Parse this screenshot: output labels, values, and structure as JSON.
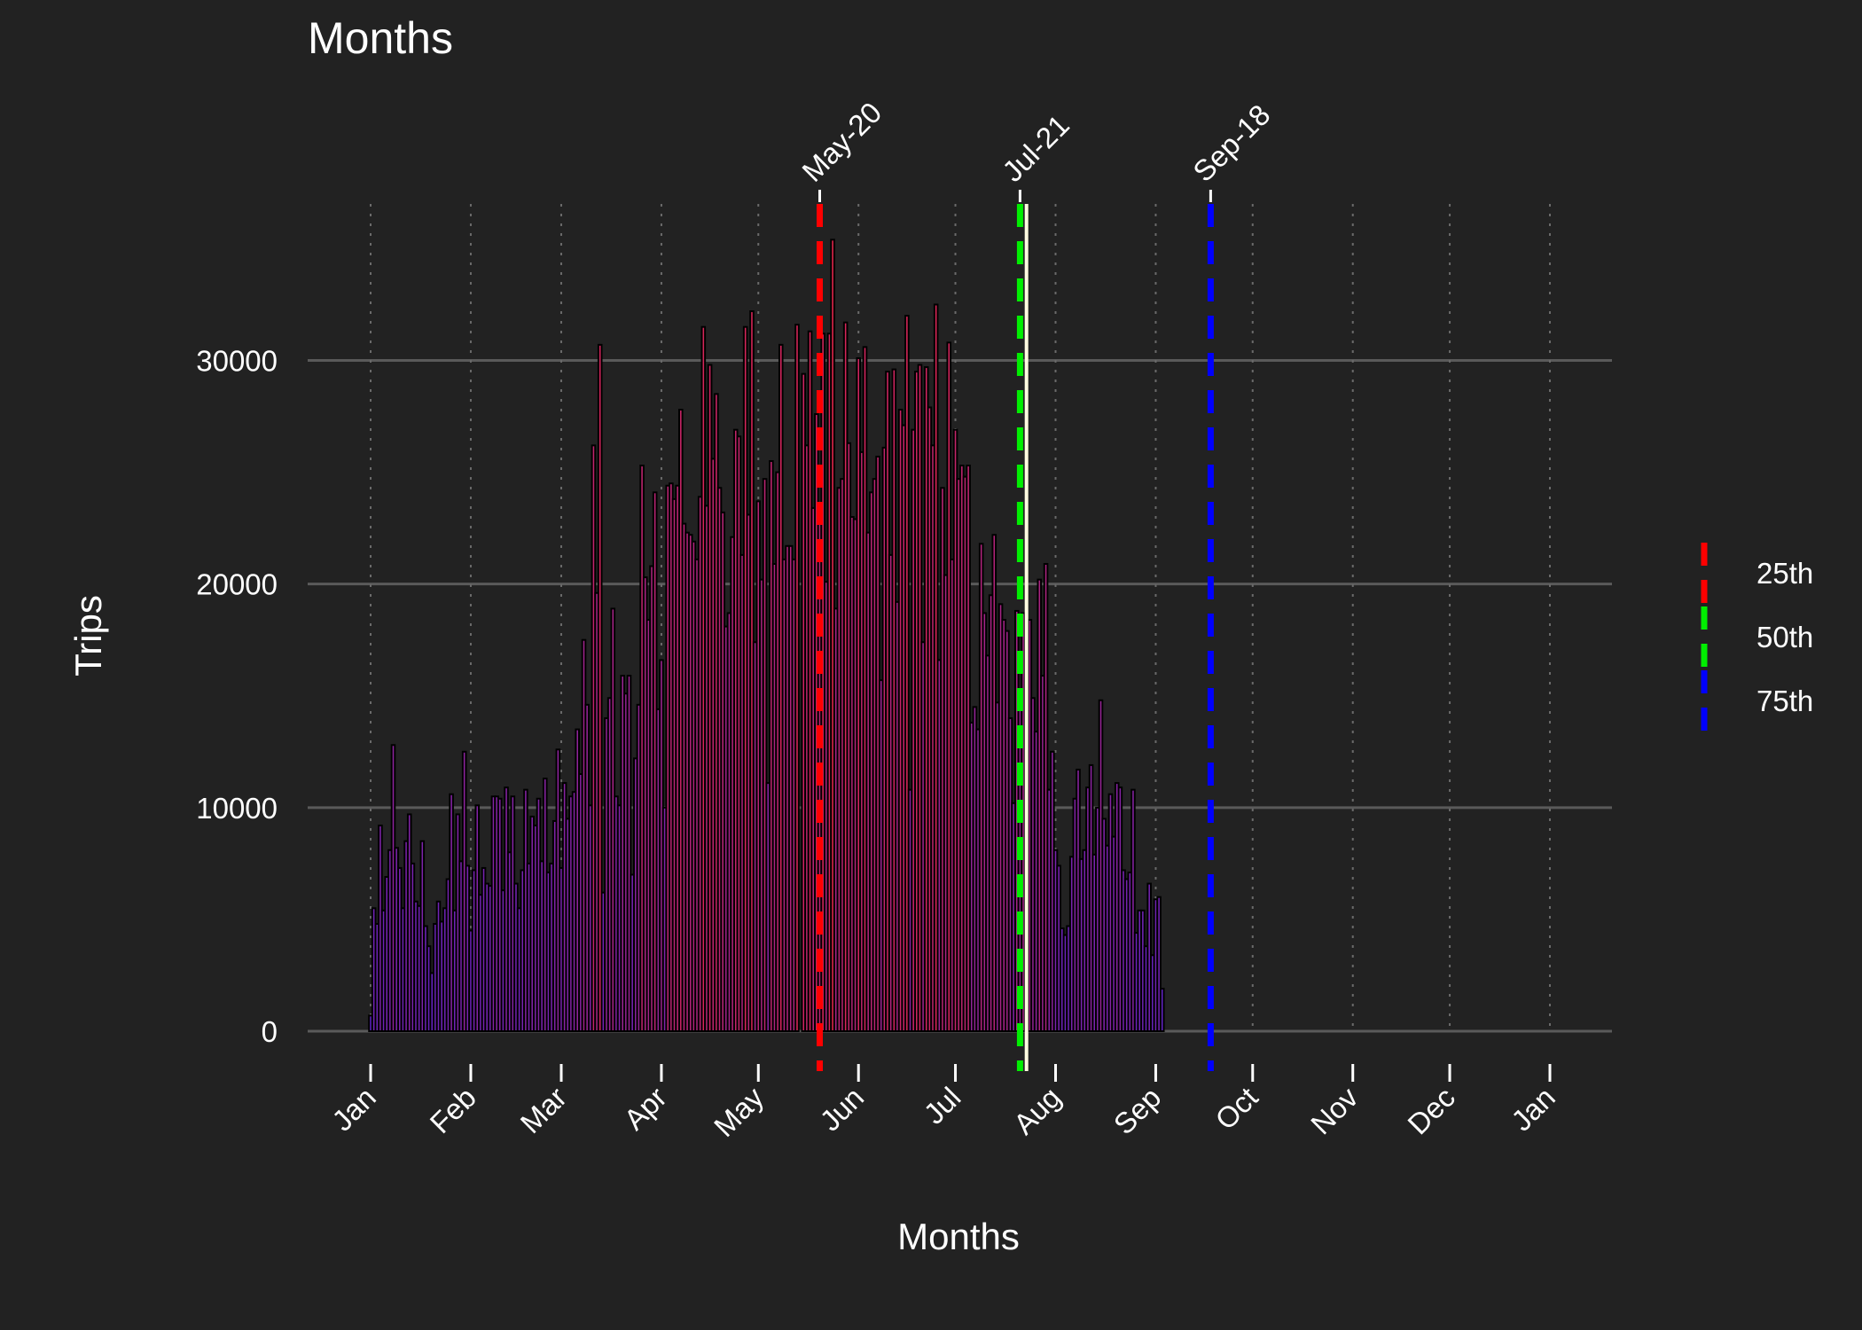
{
  "title": "Months",
  "chart_data": {
    "type": "bar",
    "title": "Months",
    "xlabel": "Months",
    "ylabel": "Trips",
    "x_range": [
      "2019-01-01",
      "2020-01-01"
    ],
    "ylim": [
      0,
      37000
    ],
    "y_ticks": [
      0,
      10000,
      20000,
      30000
    ],
    "x_ticks": [
      {
        "date": "2019-01-01",
        "label": "Jan"
      },
      {
        "date": "2019-02-01",
        "label": "Feb"
      },
      {
        "date": "2019-03-01",
        "label": "Mar"
      },
      {
        "date": "2019-04-01",
        "label": "Apr"
      },
      {
        "date": "2019-05-01",
        "label": "May"
      },
      {
        "date": "2019-06-01",
        "label": "Jun"
      },
      {
        "date": "2019-07-01",
        "label": "Jul"
      },
      {
        "date": "2019-08-01",
        "label": "Aug"
      },
      {
        "date": "2019-09-01",
        "label": "Sep"
      },
      {
        "date": "2019-10-01",
        "label": "Oct"
      },
      {
        "date": "2019-11-01",
        "label": "Nov"
      },
      {
        "date": "2019-12-01",
        "label": "Dec"
      },
      {
        "date": "2020-01-01",
        "label": "Jan"
      }
    ],
    "grid": {
      "horizontal": "solid",
      "vertical": "dotted"
    },
    "x_start_date": "2019-01-01",
    "daily_trips": [
      700,
      5500,
      4800,
      9200,
      5400,
      6900,
      8100,
      12800,
      8200,
      7300,
      5500,
      8500,
      9700,
      7500,
      5800,
      5600,
      8500,
      4700,
      3800,
      2600,
      4800,
      5800,
      4900,
      5500,
      6800,
      10600,
      5400,
      9700,
      7600,
      12500,
      7400,
      4500,
      7200,
      10100,
      6100,
      7300,
      6600,
      6500,
      10500,
      10500,
      10400,
      6300,
      10900,
      8000,
      10500,
      6600,
      5500,
      7200,
      10800,
      7500,
      9600,
      9200,
      10400,
      7600,
      11300,
      7100,
      7500,
      9400,
      12600,
      7300,
      11100,
      9500,
      10500,
      10700,
      13500,
      11500,
      17500,
      14600,
      10100,
      26200,
      19600,
      30700,
      6200,
      14000,
      14900,
      18900,
      10500,
      10100,
      15900,
      15100,
      15900,
      7000,
      12200,
      14600,
      25300,
      20300,
      18400,
      20800,
      24100,
      14400,
      16600,
      10000,
      24400,
      24500,
      23800,
      24400,
      27800,
      22700,
      22300,
      22200,
      21900,
      21100,
      23900,
      31500,
      23500,
      29800,
      25600,
      28500,
      24300,
      23200,
      18100,
      18700,
      22100,
      26900,
      26600,
      21300,
      31500,
      23100,
      32200,
      17400,
      23700,
      20200,
      24700,
      11100,
      25500,
      20900,
      25000,
      30700,
      21100,
      21700,
      21700,
      21100,
      31600,
      0,
      29400,
      26200,
      31300,
      23400,
      27600,
      23300,
      31200,
      20100,
      31200,
      35400,
      18900,
      24300,
      24700,
      31700,
      26300,
      23000,
      22900,
      30100,
      25900,
      30600,
      22300,
      24100,
      24700,
      25700,
      15700,
      26100,
      29500,
      21300,
      29600,
      19200,
      27800,
      27100,
      32000,
      10800,
      26900,
      29500,
      29800,
      17400,
      29700,
      27900,
      26200,
      32500,
      16600,
      24300,
      20400,
      30800,
      21100,
      26900,
      24700,
      25300,
      24800,
      25300,
      13800,
      14500,
      13500,
      21800,
      18700,
      16800,
      19500,
      22200,
      14700,
      19100,
      18400,
      17900,
      14000,
      10200,
      18800,
      14700,
      18700,
      15800,
      18400,
      14900,
      13400,
      20200,
      15900,
      20900,
      10800,
      12500,
      8100,
      7400,
      4600,
      4300,
      4700,
      7800,
      10400,
      11700,
      7700,
      8100,
      10900,
      11900,
      7900,
      10000,
      14800,
      9500,
      8300,
      10600,
      8700,
      11100,
      10900,
      7200,
      6800,
      7100,
      10800,
      4400,
      5400,
      5400,
      3800,
      6600,
      3400,
      5900,
      6000,
      1900
    ],
    "bar_color_scale": {
      "low": "#5a22c8",
      "high": "#e8264a",
      "min": 0,
      "max": 36000
    },
    "median_line": {
      "date": "2019-07-23",
      "color": "#fffbe0"
    },
    "quantile_lines": [
      {
        "label": "May-20",
        "date": "2019-05-20",
        "percentile": "25th",
        "color": "#ff0000"
      },
      {
        "label": "Jul-21",
        "date": "2019-07-21",
        "percentile": "50th",
        "color": "#00ee00"
      },
      {
        "label": "Sep-18",
        "date": "2019-09-18",
        "percentile": "75th",
        "color": "#0000ff"
      }
    ],
    "legend": {
      "position": "right",
      "entries": [
        {
          "label": "25th",
          "color": "#ff0000"
        },
        {
          "label": "50th",
          "color": "#00ee00"
        },
        {
          "label": "75th",
          "color": "#0000ff"
        }
      ]
    }
  }
}
